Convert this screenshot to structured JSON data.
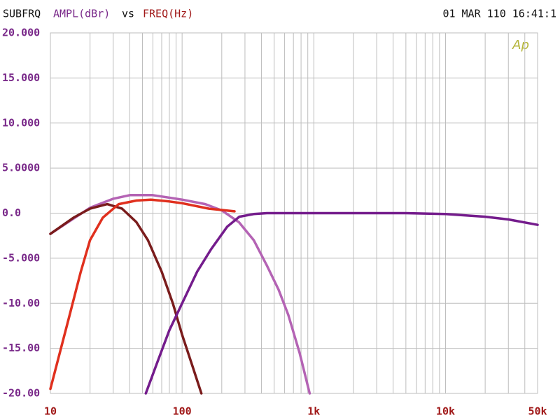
{
  "chart_data": {
    "type": "line",
    "title": "SUBFRQ",
    "y_label": "AMPL(dBr)",
    "joiner": "vs",
    "x_label": "FREQ(Hz)",
    "timestamp": "01 MAR 110 16:41:1",
    "logo": "Ap",
    "x_log": true,
    "grid": true,
    "xlim": [
      10,
      50000
    ],
    "xticks": [
      10,
      100,
      {
        "value": 1000,
        "label": "1k"
      },
      {
        "value": 10000,
        "label": "10k"
      },
      {
        "value": 50000,
        "label": "50k"
      }
    ],
    "xgrid": [
      20,
      30,
      40,
      50,
      60,
      70,
      80,
      90,
      200,
      300,
      400,
      500,
      600,
      700,
      800,
      900,
      2000,
      3000,
      4000,
      5000,
      6000,
      7000,
      8000,
      9000,
      20000,
      30000,
      40000
    ],
    "ylim": [
      -20,
      20
    ],
    "yticks": [
      {
        "value": 20,
        "label": "20.000"
      },
      {
        "value": 15,
        "label": "15.000"
      },
      {
        "value": 10,
        "label": "10.000"
      },
      {
        "value": 5,
        "label": "5.0000"
      },
      {
        "value": 0,
        "label": "0.0"
      },
      {
        "value": -5,
        "label": "-5.000"
      },
      {
        "value": -10,
        "label": "-10.00"
      },
      {
        "value": -15,
        "label": "-15.00"
      },
      {
        "value": -20,
        "label": "-20.00"
      }
    ],
    "series": [
      {
        "color": "#b463b4",
        "x": [
          10,
          20,
          30,
          40,
          60,
          100,
          150,
          200,
          270,
          350,
          440,
          540,
          640,
          780,
          930
        ],
        "values": [
          -2.3,
          0.6,
          1.6,
          2.0,
          2.0,
          1.5,
          1.0,
          0.3,
          -1,
          -3,
          -5.8,
          -8.5,
          -11.3,
          -15.5,
          -20
        ]
      },
      {
        "color": "#7a1c1c",
        "x": [
          10,
          15,
          20,
          27,
          35,
          45,
          55,
          70,
          85,
          100,
          120,
          140
        ],
        "values": [
          -2.3,
          -0.5,
          0.5,
          1.0,
          0.5,
          -1,
          -3,
          -6.5,
          -10,
          -13.5,
          -17,
          -20
        ]
      },
      {
        "color": "#e0301e",
        "x": [
          10,
          14,
          17,
          20,
          25,
          33,
          45,
          58,
          80,
          100,
          160,
          250
        ],
        "values": [
          -19.5,
          -11.3,
          -6.5,
          -3,
          -0.5,
          1,
          1.4,
          1.5,
          1.3,
          1.1,
          0.5,
          0.2
        ]
      },
      {
        "color": "#741c8c",
        "x": [
          53,
          65,
          80,
          100,
          130,
          166,
          220,
          272,
          350,
          440,
          1000,
          5000,
          10000,
          20000,
          30000,
          50000
        ],
        "values": [
          -20,
          -16.5,
          -13,
          -10,
          -6.5,
          -4,
          -1.5,
          -0.4,
          -0.1,
          0,
          0,
          0,
          -0.1,
          -0.4,
          -0.7,
          -1.3
        ]
      }
    ]
  }
}
